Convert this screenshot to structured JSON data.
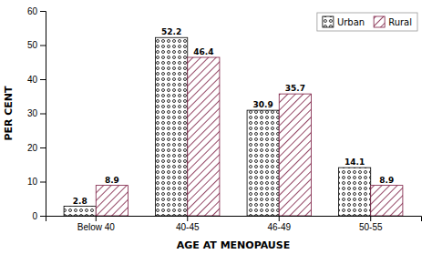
{
  "chart_data": {
    "type": "bar",
    "categories": [
      "Below 40",
      "40-45",
      "46-49",
      "50-55"
    ],
    "series": [
      {
        "name": "Urban",
        "color": "#000000",
        "values": [
          2.8,
          52.2,
          30.9,
          14.1
        ]
      },
      {
        "name": "Rural",
        "color": "#7a1a40",
        "values": [
          8.9,
          46.4,
          35.7,
          8.9
        ]
      }
    ],
    "xlabel": "AGE AT MENOPAUSE",
    "ylabel": "PER CENT",
    "ylim": [
      0,
      60
    ],
    "yticks": [
      0,
      10,
      20,
      30,
      40,
      50,
      60
    ],
    "grid": false,
    "legend": "upper right",
    "data_labels": true
  }
}
